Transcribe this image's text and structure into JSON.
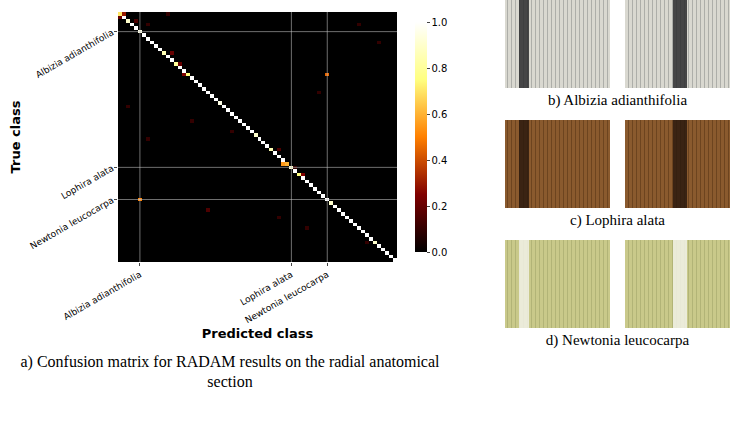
{
  "chart_data": {
    "type": "heatmap",
    "title": "a) Confusion matrix for RADAM results on the radial anatomical section",
    "x_label": "Predicted class",
    "y_label": "True class",
    "categories": [
      null,
      null,
      null,
      null,
      null,
      "Albizia adianthifolia",
      null,
      null,
      null,
      null,
      null,
      null,
      null,
      null,
      null,
      null,
      null,
      null,
      null,
      null,
      null,
      null,
      null,
      null,
      null,
      null,
      null,
      null,
      null,
      null,
      null,
      null,
      null,
      null,
      null,
      null,
      null,
      null,
      null,
      null,
      null,
      null,
      null,
      "Lophira alata",
      null,
      null,
      null,
      null,
      null,
      null,
      null,
      null,
      "Newtonia leucocarpa",
      null,
      null,
      null,
      null,
      null,
      null,
      null,
      null,
      null,
      null,
      null,
      null,
      null,
      null,
      null,
      null,
      null
    ],
    "diagonal": [
      0.7,
      1,
      0.9,
      1,
      1,
      0.95,
      1,
      1,
      1,
      1,
      1,
      0.85,
      1,
      1,
      0.8,
      1,
      1,
      0.75,
      1,
      1,
      1,
      1,
      1,
      1,
      1,
      0.95,
      1,
      1,
      1,
      1,
      1,
      1,
      1,
      1,
      0.9,
      1,
      1,
      1,
      0.85,
      1,
      1,
      1,
      0.6,
      0.9,
      1,
      0.75,
      1,
      1,
      1,
      1,
      1,
      1,
      1,
      0.9,
      1,
      1,
      1,
      1,
      1,
      1,
      1,
      1,
      1,
      1,
      0.9,
      1,
      1,
      1,
      1,
      1
    ],
    "off_diagonal": [
      [
        0,
        1,
        0.3
      ],
      [
        1,
        0,
        0.2
      ],
      [
        2,
        4,
        0.15
      ],
      [
        3,
        7,
        0.1
      ],
      [
        0,
        12,
        0.1
      ],
      [
        11,
        13,
        0.2
      ],
      [
        14,
        15,
        0.2
      ],
      [
        17,
        16,
        0.25
      ],
      [
        17,
        52,
        0.45
      ],
      [
        22,
        50,
        0.1
      ],
      [
        26,
        2,
        0.1
      ],
      [
        30,
        18,
        0.1
      ],
      [
        33,
        28,
        0.1
      ],
      [
        35,
        7,
        0.1
      ],
      [
        38,
        40,
        0.15
      ],
      [
        42,
        41,
        0.55
      ],
      [
        43,
        44,
        0.1
      ],
      [
        45,
        46,
        0.25
      ],
      [
        52,
        5,
        0.5
      ],
      [
        55,
        22,
        0.15
      ],
      [
        57,
        40,
        0.1
      ],
      [
        60,
        47,
        0.1
      ],
      [
        64,
        62,
        0.1
      ],
      [
        3,
        60,
        0.1
      ],
      [
        8,
        65,
        0.1
      ]
    ],
    "zlim": [
      0,
      1
    ],
    "colorbar_ticks": [
      {
        "value": 0,
        "label": "0.0"
      },
      {
        "value": 0.2,
        "label": "0.2"
      },
      {
        "value": 0.4,
        "label": "0.4"
      },
      {
        "value": 0.6,
        "label": "0.6"
      },
      {
        "value": 0.8,
        "label": "0.8"
      },
      {
        "value": 1,
        "label": "1.0"
      }
    ],
    "grid": true
  },
  "panels": [
    {
      "caption": "b) Albizia adianthifolia"
    },
    {
      "caption": "c) Lophira alata"
    },
    {
      "caption": "d) Newtonia leucocarpa"
    }
  ]
}
